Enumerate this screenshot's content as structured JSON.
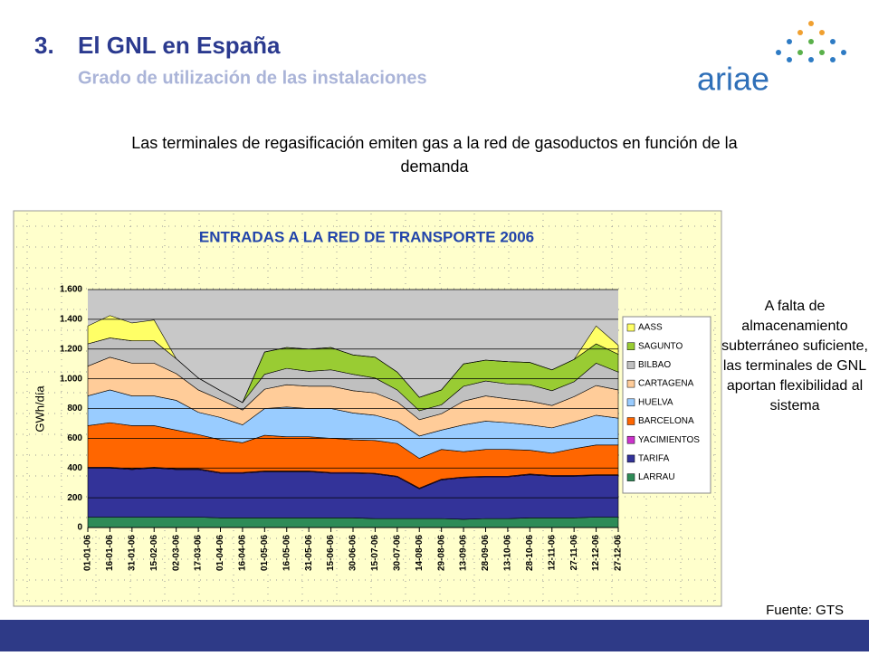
{
  "slide": {
    "number": "3.",
    "title": "El GNL en España",
    "subtitle": "Grado de utilización de las instalaciones",
    "logo": "ariae",
    "intro": "Las terminales de regasificación emiten gas a la red de gasoductos en función de la demanda",
    "note": "A falta de almacenamiento subterráneo suficiente, las terminales de GNL aportan flexibilidad al sistema",
    "source": "Fuente: GTS"
  },
  "chart_data": {
    "type": "stacked_area",
    "title": "ENTRADAS A LA RED DE TRANSPORTE 2006",
    "y_label": "GWh/día",
    "categories": [
      "01-01-06",
      "16-01-06",
      "31-01-06",
      "15-02-06",
      "02-03-06",
      "17-03-06",
      "01-04-06",
      "16-04-06",
      "01-05-06",
      "16-05-06",
      "31-05-06",
      "15-06-06",
      "30-06-06",
      "15-07-06",
      "30-07-06",
      "14-08-06",
      "29-08-06",
      "13-09-06",
      "28-09-06",
      "13-10-06",
      "28-10-06",
      "12-11-06",
      "27-11-06",
      "12-12-06",
      "27-12-06"
    ],
    "series": [
      {
        "name": "LARRAU",
        "color": "#2e8b57",
        "values": [
          70,
          70,
          70,
          70,
          70,
          70,
          65,
          65,
          65,
          65,
          65,
          65,
          65,
          60,
          60,
          60,
          60,
          55,
          60,
          60,
          65,
          65,
          65,
          70,
          70
        ]
      },
      {
        "name": "TARIFA",
        "color": "#333399",
        "values": [
          330,
          330,
          320,
          330,
          320,
          320,
          300,
          300,
          310,
          310,
          310,
          300,
          300,
          300,
          280,
          200,
          260,
          280,
          280,
          280,
          290,
          280,
          280,
          280,
          280
        ]
      },
      {
        "name": "YACIMIENTOS",
        "color": "#cc33cc",
        "values": [
          5,
          5,
          5,
          5,
          5,
          5,
          5,
          5,
          5,
          5,
          5,
          5,
          5,
          5,
          5,
          5,
          5,
          5,
          5,
          5,
          5,
          5,
          5,
          5,
          5
        ]
      },
      {
        "name": "BARCELONA",
        "color": "#ff6600",
        "values": [
          280,
          300,
          290,
          280,
          260,
          230,
          220,
          200,
          240,
          230,
          230,
          230,
          220,
          220,
          220,
          200,
          200,
          170,
          180,
          180,
          160,
          150,
          180,
          200,
          200
        ]
      },
      {
        "name": "HUELVA",
        "color": "#99ccff",
        "values": [
          200,
          220,
          200,
          200,
          200,
          150,
          150,
          120,
          180,
          200,
          190,
          200,
          180,
          170,
          150,
          150,
          130,
          180,
          190,
          180,
          170,
          170,
          180,
          200,
          180
        ]
      },
      {
        "name": "CARTAGENA",
        "color": "#ffcc99",
        "values": [
          200,
          220,
          220,
          220,
          180,
          150,
          120,
          100,
          130,
          150,
          150,
          150,
          150,
          150,
          130,
          110,
          110,
          160,
          170,
          160,
          160,
          150,
          170,
          200,
          190
        ]
      },
      {
        "name": "BILBAO",
        "color": "#c0c0c0",
        "values": [
          150,
          130,
          150,
          150,
          100,
          80,
          60,
          50,
          100,
          110,
          100,
          110,
          110,
          100,
          80,
          60,
          60,
          100,
          100,
          100,
          110,
          100,
          100,
          150,
          120
        ]
      },
      {
        "name": "SAGUNTO",
        "color": "#99cc33",
        "values": [
          0,
          0,
          0,
          0,
          0,
          0,
          0,
          0,
          150,
          140,
          150,
          150,
          130,
          140,
          120,
          90,
          100,
          150,
          140,
          150,
          150,
          140,
          150,
          130,
          120
        ]
      },
      {
        "name": "AASS",
        "color": "#ffff66",
        "values": [
          120,
          150,
          120,
          140,
          0,
          0,
          0,
          0,
          0,
          0,
          0,
          0,
          0,
          0,
          0,
          0,
          0,
          0,
          0,
          0,
          0,
          0,
          0,
          120,
          60
        ]
      }
    ],
    "ylim": [
      0,
      1600
    ],
    "yticks": [
      0,
      200,
      400,
      600,
      800,
      {
        "value": 1000,
        "label": "1.000"
      },
      {
        "value": 1200,
        "label": "1.200"
      },
      {
        "value": 1400,
        "label": "1.400"
      },
      {
        "value": 1600,
        "label": "1.600"
      }
    ],
    "grid": true
  }
}
